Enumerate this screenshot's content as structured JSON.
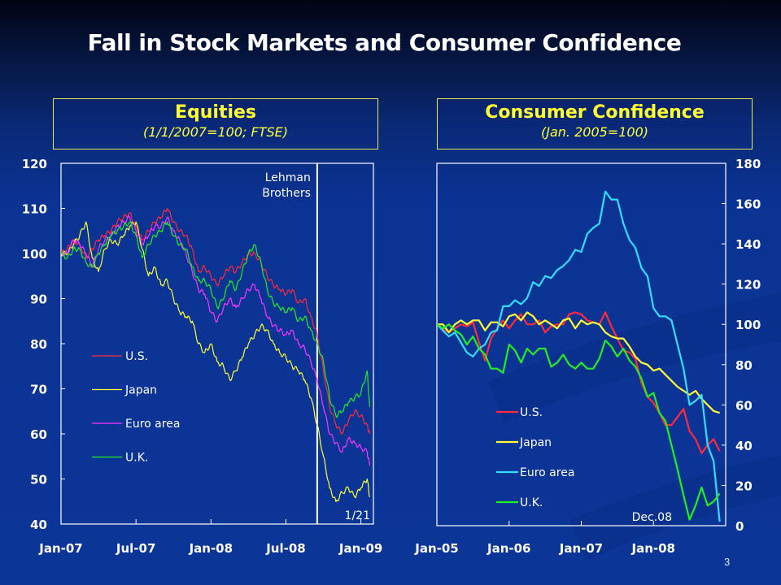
{
  "slide": {
    "title": "Fall in Stock Markets and Consumer Confidence",
    "page_number": "3"
  },
  "colors": {
    "background": "#0b3597",
    "header_text": "#ffff33",
    "header_border": "#e8e85a",
    "axis": "#ffffff"
  },
  "chart_data": [
    {
      "id": "equities",
      "type": "line",
      "title": "Equities",
      "subtitle": "(1/1/2007=100; FTSE)",
      "xlabel": "",
      "ylabel": "",
      "x_unit": "months since Jan-07",
      "xlim": [
        0,
        25
      ],
      "ylim": [
        40,
        120
      ],
      "y_ticks": [
        40,
        50,
        60,
        70,
        80,
        90,
        100,
        110,
        120
      ],
      "y_axis_side": "left",
      "x_ticks": [
        {
          "x": 0,
          "label": "Jan-07"
        },
        {
          "x": 6,
          "label": "Jul-07"
        },
        {
          "x": 12,
          "label": "Jan-08"
        },
        {
          "x": 18,
          "label": "Jul-08"
        },
        {
          "x": 24,
          "label": "Jan-09"
        }
      ],
      "grid": false,
      "legend": {
        "placement": "left-middle"
      },
      "annotations": [
        {
          "type": "vline",
          "x": 20.5,
          "label": "Lehman\nBrothers",
          "label_lines": [
            "Lehman",
            "Brothers"
          ]
        },
        {
          "type": "text",
          "label": "1/21",
          "position": "bottom-right"
        }
      ],
      "x": [
        0,
        0.5,
        1,
        1.5,
        2,
        2.5,
        3,
        3.5,
        4,
        4.5,
        5,
        5.5,
        6,
        6.5,
        7,
        7.5,
        8,
        8.5,
        9,
        9.5,
        10,
        10.5,
        11,
        11.5,
        12,
        12.5,
        13,
        13.5,
        14,
        14.5,
        15,
        15.5,
        16,
        16.5,
        17,
        17.5,
        18,
        18.5,
        19,
        19.5,
        20,
        20.5,
        21,
        21.5,
        22,
        22.5,
        23,
        23.5,
        24,
        24.5,
        24.7
      ],
      "series": [
        {
          "name": "U.S.",
          "color": "#ff2a3c",
          "values": [
            100,
            101,
            103,
            102,
            99,
            101,
            103,
            104,
            105,
            107,
            108,
            109,
            106,
            103,
            105,
            107,
            108,
            110,
            107,
            105,
            104,
            101,
            96,
            97,
            95,
            93,
            95,
            97,
            96,
            98,
            100,
            100,
            98,
            95,
            93,
            92,
            91,
            92,
            89,
            90,
            86,
            82,
            74,
            66,
            62,
            60,
            63,
            65,
            64,
            62,
            60
          ]
        },
        {
          "name": "Japan",
          "color": "#ffff33",
          "values": [
            100,
            100,
            102,
            104,
            107,
            99,
            96,
            101,
            103,
            102,
            104,
            106,
            107,
            101,
            95,
            97,
            93,
            94,
            90,
            87,
            86,
            85,
            80,
            78,
            80,
            76,
            75,
            72,
            74,
            77,
            80,
            82,
            84,
            83,
            80,
            78,
            77,
            75,
            74,
            72,
            68,
            62,
            55,
            48,
            45,
            47,
            48,
            46,
            48,
            50,
            46
          ]
        },
        {
          "name": "Euro area",
          "color": "#ff33ff",
          "values": [
            100,
            100,
            103,
            102,
            100,
            97,
            101,
            103,
            104,
            106,
            107,
            108,
            105,
            102,
            104,
            106,
            106,
            108,
            105,
            103,
            100,
            96,
            92,
            91,
            87,
            85,
            88,
            90,
            88,
            90,
            92,
            93,
            90,
            86,
            84,
            83,
            82,
            83,
            80,
            79,
            76,
            72,
            66,
            60,
            58,
            56,
            59,
            58,
            57,
            56,
            53
          ]
        },
        {
          "name": "U.K.",
          "color": "#22ee22",
          "values": [
            100,
            99,
            101,
            101,
            98,
            97,
            100,
            102,
            104,
            105,
            106,
            107,
            104,
            99,
            102,
            104,
            105,
            107,
            104,
            102,
            101,
            97,
            94,
            94,
            92,
            88,
            90,
            94,
            92,
            96,
            100,
            102,
            98,
            92,
            89,
            88,
            87,
            88,
            85,
            86,
            83,
            80,
            76,
            68,
            64,
            65,
            67,
            68,
            69,
            74,
            66
          ]
        }
      ]
    },
    {
      "id": "consumer-confidence",
      "type": "line",
      "title": "Consumer Confidence",
      "subtitle": "(Jan. 2005=100)",
      "xlabel": "",
      "ylabel": "",
      "x_unit": "months since Jan-05",
      "xlim": [
        0,
        48
      ],
      "ylim": [
        0,
        180
      ],
      "y_ticks": [
        0,
        20,
        40,
        60,
        80,
        100,
        120,
        140,
        160,
        180
      ],
      "y_axis_side": "right",
      "x_ticks": [
        {
          "x": 0,
          "label": "Jan-05"
        },
        {
          "x": 12,
          "label": "Jan-06"
        },
        {
          "x": 24,
          "label": "Jan-07"
        },
        {
          "x": 36,
          "label": "Jan-08"
        }
      ],
      "grid": false,
      "legend": {
        "placement": "bottom-left"
      },
      "annotations": [
        {
          "type": "text",
          "label": "Dec.08",
          "position": "bottom-right"
        }
      ],
      "x": [
        0,
        1,
        2,
        3,
        4,
        5,
        6,
        7,
        8,
        9,
        10,
        11,
        12,
        13,
        14,
        15,
        16,
        17,
        18,
        19,
        20,
        21,
        22,
        23,
        24,
        25,
        26,
        27,
        28,
        29,
        30,
        31,
        32,
        33,
        34,
        35,
        36,
        37,
        38,
        39,
        40,
        41,
        42,
        43,
        44,
        45,
        46,
        47
      ],
      "series": [
        {
          "name": "U.S.",
          "color": "#ff2a3c",
          "values": [
            100,
            98,
            96,
            98,
            100,
            99,
            101,
            91,
            82,
            93,
            98,
            102,
            98,
            102,
            105,
            100,
            100,
            102,
            96,
            99,
            100,
            100,
            105,
            106,
            105,
            102,
            101,
            100,
            106,
            99,
            93,
            87,
            86,
            83,
            71,
            64,
            61,
            56,
            50,
            50,
            54,
            58,
            47,
            43,
            36,
            40,
            43,
            37
          ]
        },
        {
          "name": "Japan",
          "color": "#ffff33",
          "values": [
            100,
            100,
            96,
            100,
            102,
            100,
            102,
            102,
            97,
            101,
            101,
            99,
            104,
            105,
            102,
            106,
            104,
            100,
            102,
            100,
            98,
            102,
            103,
            98,
            102,
            100,
            101,
            100,
            96,
            94,
            93,
            93,
            89,
            84,
            81,
            80,
            77,
            78,
            75,
            72,
            69,
            67,
            65,
            67,
            63,
            60,
            57,
            56
          ]
        },
        {
          "name": "Euro area",
          "color": "#33ddff",
          "values": [
            100,
            97,
            94,
            96,
            91,
            86,
            84,
            88,
            90,
            96,
            97,
            109,
            109,
            112,
            110,
            113,
            121,
            119,
            124,
            123,
            127,
            129,
            132,
            137,
            136,
            145,
            148,
            150,
            166,
            162,
            162,
            150,
            142,
            138,
            128,
            124,
            108,
            104,
            104,
            102,
            90,
            78,
            60,
            62,
            65,
            40,
            32,
            2
          ]
        },
        {
          "name": "U.K.",
          "color": "#22ee22",
          "values": [
            100,
            98,
            100,
            97,
            95,
            90,
            94,
            88,
            85,
            78,
            78,
            76,
            90,
            87,
            81,
            88,
            85,
            88,
            88,
            79,
            81,
            85,
            80,
            78,
            81,
            78,
            78,
            83,
            92,
            89,
            84,
            88,
            82,
            79,
            73,
            64,
            66,
            56,
            52,
            40,
            28,
            15,
            3,
            10,
            19,
            10,
            12,
            16
          ]
        }
      ]
    }
  ]
}
